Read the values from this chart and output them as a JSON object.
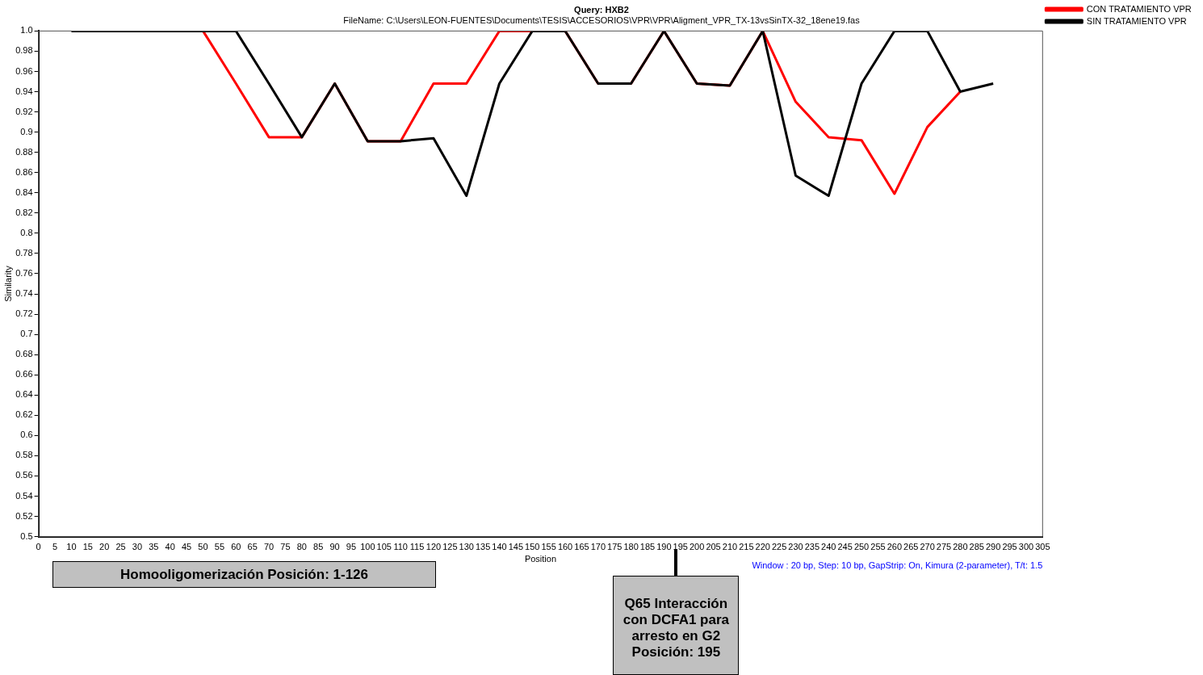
{
  "chart_data": {
    "type": "line",
    "title": "Query: HXB2",
    "subtitle": "FileName: C:\\Users\\LEON-FUENTES\\Documents\\TESIS\\ACCESORIOS\\VPR\\VPR\\Aligment_VPR_TX-13vsSinTX-32_18ene19.fas",
    "xlabel": "Position",
    "ylabel": "Similarity",
    "x": [
      10,
      20,
      30,
      40,
      50,
      60,
      70,
      80,
      90,
      100,
      110,
      120,
      130,
      140,
      150,
      160,
      170,
      180,
      190,
      200,
      210,
      220,
      230,
      240,
      250,
      260,
      270,
      280,
      290
    ],
    "series": [
      {
        "name": "CON TRATAMIENTO VPR",
        "color": "#ff0000",
        "values": [
          null,
          null,
          null,
          null,
          1.0,
          0.948,
          0.895,
          0.895,
          0.948,
          0.891,
          0.891,
          0.948,
          0.948,
          1.0,
          1.0,
          1.0,
          0.948,
          0.948,
          1.0,
          0.948,
          0.946,
          1.0,
          0.93,
          0.895,
          0.892,
          0.839,
          0.905,
          0.94,
          null
        ]
      },
      {
        "name": "SIN TRATAMIENTO VPR",
        "color": "#000000",
        "values": [
          1.0,
          1.0,
          1.0,
          1.0,
          1.0,
          1.0,
          0.948,
          0.895,
          0.948,
          0.891,
          0.891,
          0.894,
          0.837,
          0.948,
          1.0,
          1.0,
          0.948,
          0.948,
          1.0,
          0.948,
          0.946,
          1.0,
          0.857,
          0.837,
          0.948,
          1.0,
          1.0,
          0.94,
          0.948
        ]
      }
    ],
    "xlim": [
      0,
      305
    ],
    "xticks": [
      0,
      5,
      10,
      15,
      20,
      25,
      30,
      35,
      40,
      45,
      50,
      55,
      60,
      65,
      70,
      75,
      80,
      85,
      90,
      95,
      100,
      105,
      110,
      115,
      120,
      125,
      130,
      135,
      140,
      145,
      150,
      155,
      160,
      165,
      170,
      175,
      180,
      185,
      190,
      195,
      200,
      205,
      210,
      215,
      220,
      225,
      230,
      235,
      240,
      245,
      250,
      255,
      260,
      265,
      270,
      275,
      280,
      285,
      290,
      295,
      300,
      305
    ],
    "ylim": [
      0.5,
      1.0
    ],
    "yticks": [
      0.5,
      0.52,
      0.54,
      0.56,
      0.58,
      0.6,
      0.62,
      0.64,
      0.66,
      0.68,
      0.7,
      0.72,
      0.74,
      0.76,
      0.78,
      0.8,
      0.82,
      0.84,
      0.86,
      0.88,
      0.9,
      0.92,
      0.94,
      0.96,
      0.98,
      {
        "value": 1.0,
        "label": "1.0"
      }
    ],
    "grid": false,
    "legend": "top right",
    "marker": "none",
    "line_style": "solid",
    "annotations": [
      "Window : 20 bp, Step: 10 bp, GapStrip: On, Kimura (2-parameter), T/t: 1.5",
      "Homooligomerización  Posición: 1-126",
      "Q65  Interacción con DCFA1 para arresto en G2 Posición: 195"
    ]
  }
}
